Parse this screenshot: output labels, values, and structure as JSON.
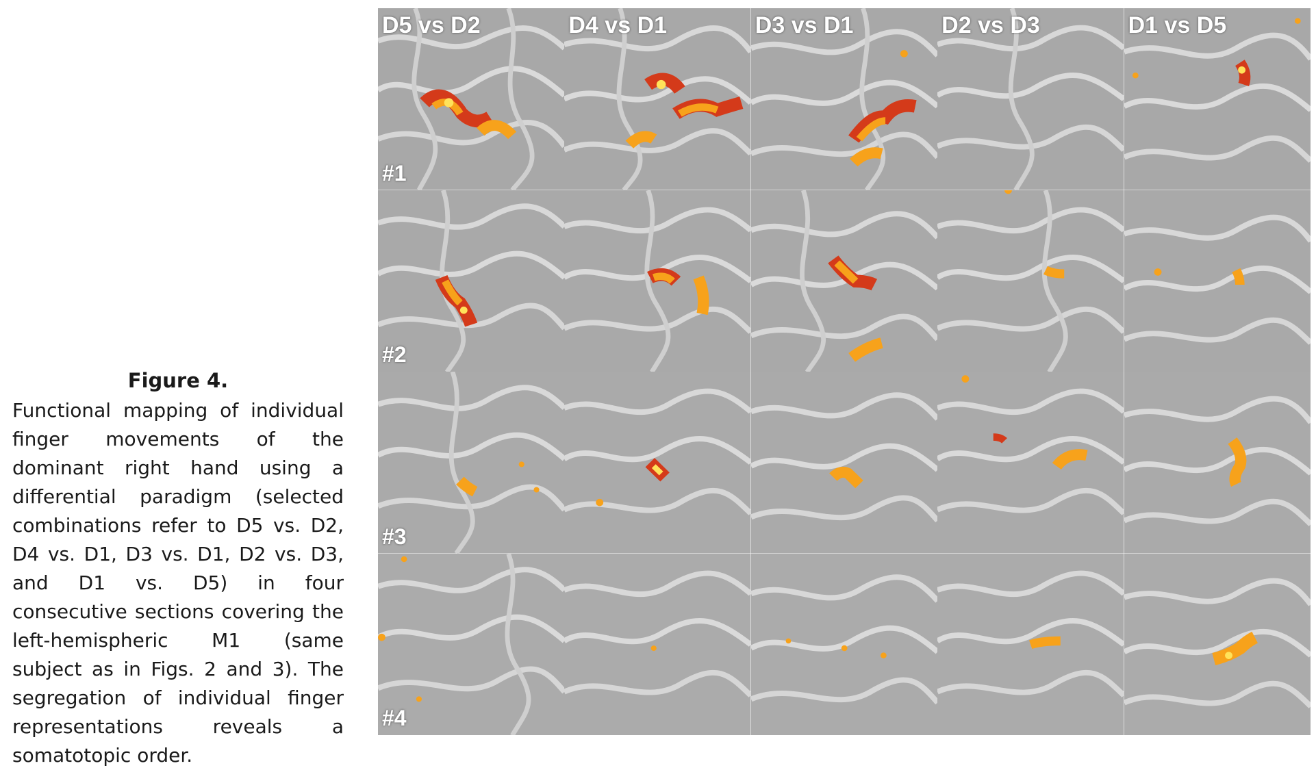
{
  "figure": {
    "label": "Figure 4.",
    "caption": "Functional mapping of individual finger movements of the dominant right hand using a differential paradigm (selected combinations refer to D5 vs. D2, D4 vs. D1, D3 vs. D1, D2 vs. D3, and D1 vs. D5) in four consecutive sections covering the left-hemispheric M1 (same subject as in Figs. 2 and 3). The segregation of individual finger representations reveals a somatotopic order."
  },
  "columns": [
    "D5 vs D2",
    "D4 vs D1",
    "D3 vs D1",
    "D2 vs D3",
    "D1 vs D5"
  ],
  "rows": [
    "#1",
    "#2",
    "#3",
    "#4"
  ],
  "image": {
    "type": "fMRI activation overlay on MRI sections",
    "background": "grayscale",
    "overlay_colors": [
      "#d43a1a",
      "#f7a21b",
      "#ffe25a"
    ]
  }
}
